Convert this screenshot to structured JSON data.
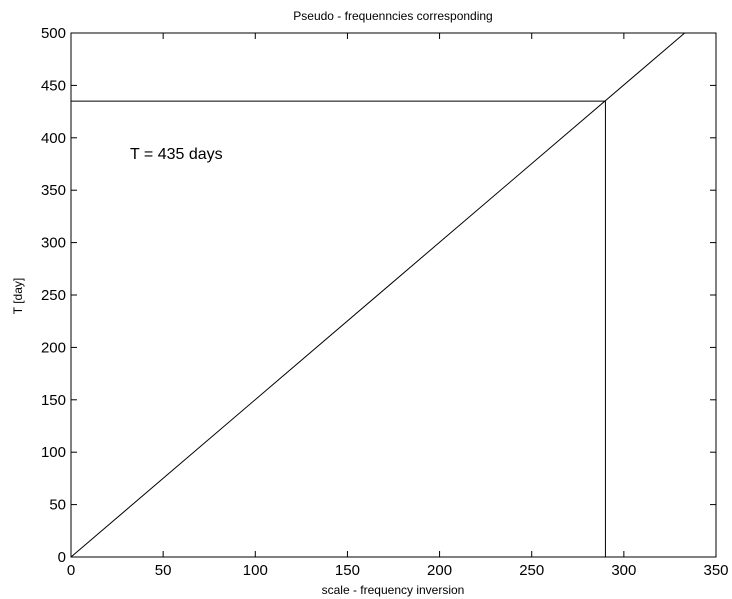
{
  "chart_data": {
    "type": "line",
    "title": "Pseudo - frequenncies corresponding",
    "xlabel": "scale -  frequency inversion",
    "ylabel": "T [day]",
    "xlim": [
      0,
      350
    ],
    "ylim": [
      0,
      500
    ],
    "xticks": [
      0,
      50,
      100,
      150,
      200,
      250,
      300,
      350
    ],
    "yticks": [
      0,
      50,
      100,
      150,
      200,
      250,
      300,
      350,
      400,
      450,
      500
    ],
    "grid": false,
    "series": [
      {
        "x": [
          0,
          333
        ],
        "y": [
          0,
          500
        ],
        "color": "#000000"
      }
    ],
    "reference_lines": {
      "horizontal": {
        "y": 435,
        "x_from": 0,
        "x_to": 290
      },
      "vertical": {
        "x": 290,
        "y_from": 0,
        "y_to": 435
      }
    },
    "annotations": [
      {
        "text": "T = 435 days",
        "x": 32,
        "y": 380
      }
    ]
  }
}
